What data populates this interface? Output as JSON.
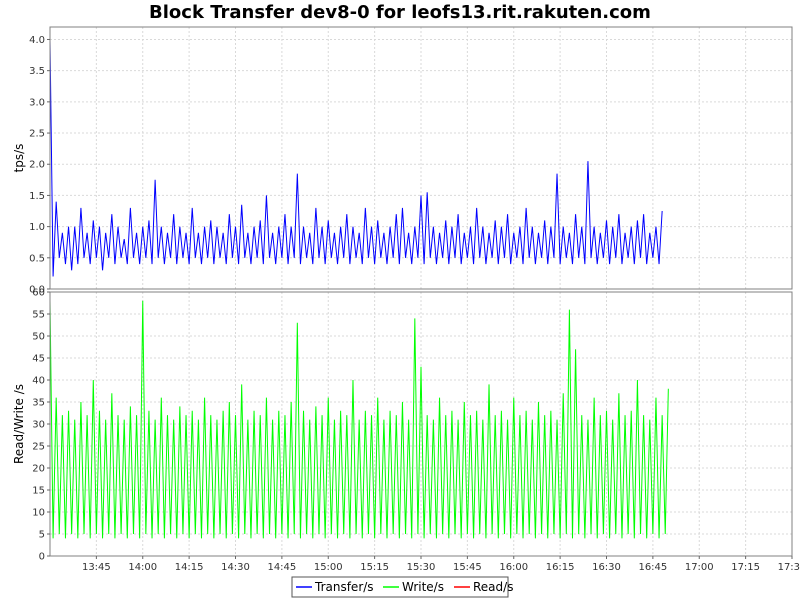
{
  "chart_data": {
    "type": "line",
    "title": "Block Transfer dev8-0 for leofs13.rit.rakuten.com",
    "x_range": [
      "13:30",
      "17:30"
    ],
    "x_ticks": [
      "13:45",
      "14:00",
      "14:15",
      "14:30",
      "14:45",
      "15:00",
      "15:15",
      "15:30",
      "15:45",
      "16:00",
      "16:15",
      "16:30",
      "16:45",
      "17:00",
      "17:15",
      "17:30"
    ],
    "sample_interval_minutes": 1,
    "grid": true,
    "legend_position": "bottom",
    "panels": [
      {
        "ylabel": "tps/s",
        "ylim": [
          0,
          4.2
        ],
        "y_ticks": [
          "0.0",
          "0.5",
          "1.0",
          "1.5",
          "2.0",
          "2.5",
          "3.0",
          "3.5",
          "4.0"
        ],
        "series": [
          {
            "name": "Transfer/s",
            "color": "#0000ff",
            "values": [
              4.0,
              0.2,
              1.4,
              0.5,
              0.9,
              0.4,
              1.0,
              0.3,
              1.0,
              0.4,
              1.3,
              0.5,
              0.9,
              0.4,
              1.1,
              0.5,
              1.0,
              0.3,
              0.9,
              0.5,
              1.2,
              0.4,
              1.0,
              0.5,
              0.8,
              0.4,
              1.3,
              0.5,
              0.9,
              0.4,
              1.0,
              0.5,
              1.1,
              0.4,
              1.75,
              0.5,
              1.0,
              0.4,
              0.9,
              0.5,
              1.2,
              0.4,
              1.0,
              0.5,
              0.9,
              0.4,
              1.3,
              0.5,
              0.9,
              0.4,
              1.0,
              0.5,
              1.1,
              0.4,
              1.0,
              0.5,
              0.9,
              0.4,
              1.2,
              0.5,
              1.0,
              0.4,
              1.35,
              0.5,
              0.9,
              0.4,
              1.0,
              0.5,
              1.1,
              0.4,
              1.5,
              0.5,
              0.9,
              0.4,
              1.0,
              0.5,
              1.2,
              0.4,
              1.0,
              0.5,
              1.85,
              0.4,
              1.0,
              0.5,
              0.9,
              0.4,
              1.3,
              0.5,
              1.0,
              0.4,
              1.1,
              0.5,
              0.9,
              0.4,
              1.0,
              0.5,
              1.2,
              0.4,
              1.0,
              0.5,
              0.9,
              0.4,
              1.3,
              0.5,
              1.0,
              0.4,
              1.1,
              0.5,
              0.9,
              0.4,
              1.0,
              0.5,
              1.2,
              0.4,
              1.3,
              0.5,
              0.9,
              0.4,
              1.0,
              0.5,
              1.5,
              0.4,
              1.55,
              0.5,
              1.0,
              0.4,
              0.9,
              0.5,
              1.1,
              0.4,
              1.0,
              0.5,
              1.2,
              0.4,
              0.9,
              0.5,
              1.0,
              0.4,
              1.3,
              0.5,
              1.0,
              0.4,
              0.9,
              0.5,
              1.1,
              0.4,
              1.0,
              0.5,
              1.2,
              0.4,
              0.9,
              0.5,
              1.0,
              0.4,
              1.3,
              0.5,
              1.0,
              0.4,
              0.9,
              0.5,
              1.1,
              0.4,
              1.0,
              0.5,
              1.85,
              0.4,
              1.0,
              0.5,
              0.9,
              0.4,
              1.2,
              0.5,
              1.0,
              0.4,
              2.05,
              0.5,
              1.0,
              0.4,
              0.9,
              0.5,
              1.1,
              0.4,
              1.0,
              0.5,
              1.2,
              0.4,
              0.9,
              0.5,
              1.0,
              0.4,
              1.1,
              0.5,
              1.2,
              0.4,
              0.9,
              0.5,
              1.0,
              0.4,
              1.25
            ]
          }
        ]
      },
      {
        "ylabel": "Read/Write /s",
        "ylim": [
          0,
          60
        ],
        "y_ticks": [
          "0",
          "5",
          "10",
          "15",
          "20",
          "25",
          "30",
          "35",
          "40",
          "45",
          "50",
          "55",
          "60"
        ],
        "series": [
          {
            "name": "Write/s",
            "color": "#00ff00",
            "values": [
              58,
              4,
              36,
              5,
              32,
              4,
              33,
              5,
              31,
              4,
              35,
              5,
              32,
              4,
              40,
              5,
              33,
              4,
              31,
              5,
              37,
              4,
              32,
              5,
              31,
              4,
              34,
              5,
              32,
              4,
              58,
              5,
              33,
              4,
              31,
              5,
              36,
              4,
              32,
              5,
              31,
              4,
              34,
              5,
              32,
              4,
              33,
              5,
              31,
              4,
              36,
              5,
              32,
              4,
              31,
              5,
              33,
              4,
              35,
              5,
              32,
              4,
              39,
              5,
              31,
              4,
              33,
              5,
              32,
              4,
              36,
              5,
              31,
              4,
              33,
              5,
              32,
              4,
              35,
              5,
              53,
              4,
              33,
              5,
              31,
              4,
              34,
              5,
              32,
              4,
              36,
              5,
              31,
              4,
              33,
              5,
              32,
              4,
              40,
              5,
              31,
              4,
              33,
              5,
              32,
              4,
              36,
              5,
              31,
              4,
              33,
              5,
              32,
              4,
              35,
              5,
              31,
              4,
              54,
              5,
              43,
              4,
              32,
              5,
              31,
              4,
              36,
              5,
              32,
              4,
              33,
              5,
              31,
              4,
              35,
              5,
              32,
              4,
              33,
              5,
              31,
              4,
              39,
              5,
              32,
              4,
              33,
              5,
              31,
              4,
              36,
              5,
              32,
              4,
              33,
              5,
              31,
              4,
              35,
              5,
              32,
              4,
              33,
              5,
              31,
              4,
              37,
              5,
              56,
              4,
              47,
              5,
              32,
              4,
              31,
              5,
              36,
              4,
              32,
              5,
              33,
              4,
              31,
              5,
              37,
              4,
              32,
              5,
              33,
              4,
              40,
              5,
              32,
              4,
              31,
              5,
              36,
              4,
              32,
              5,
              38
            ]
          },
          {
            "name": "Read/s",
            "color": "#ff0000",
            "values": [
              0,
              0
            ]
          }
        ]
      }
    ]
  }
}
